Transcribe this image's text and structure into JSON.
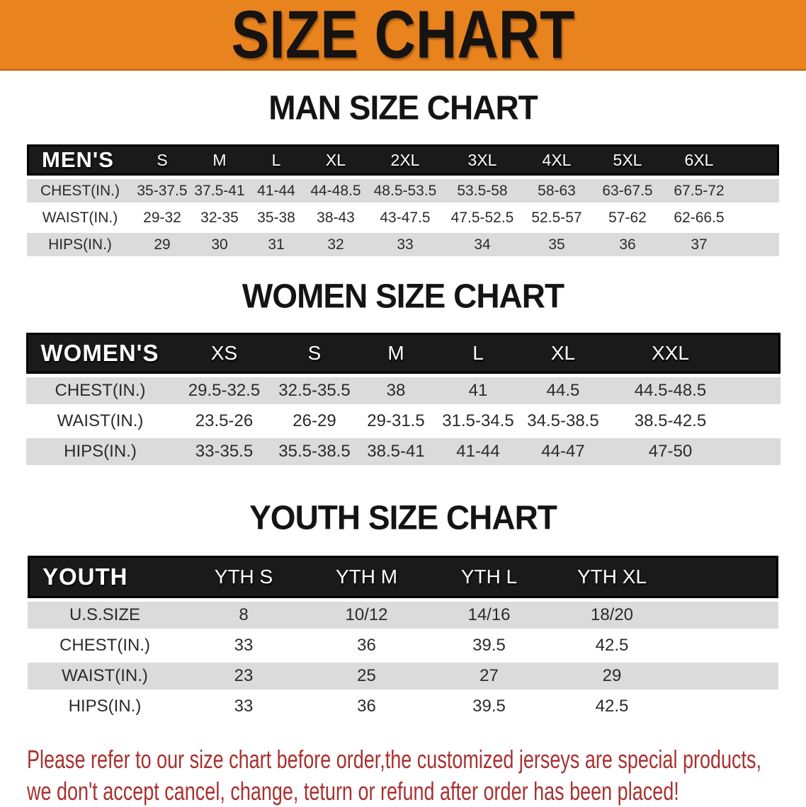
{
  "banner": {
    "title": "SIZE CHART",
    "bg_color": "#E8831E"
  },
  "sections": [
    {
      "heading": "MAN SIZE CHART",
      "table": {
        "header_label": "MEN'S",
        "columns": [
          "S",
          "M",
          "L",
          "XL",
          "2XL",
          "3XL",
          "4XL",
          "5XL",
          "6XL"
        ],
        "rows": [
          {
            "label": "CHEST(IN.)",
            "values": [
              "35-37.5",
              "37.5-41",
              "41-44",
              "44-48.5",
              "48.5-53.5",
              "53.5-58",
              "58-63",
              "63-67.5",
              "67.5-72"
            ]
          },
          {
            "label": "WAIST(IN.)",
            "values": [
              "29-32",
              "32-35",
              "35-38",
              "38-43",
              "43-47.5",
              "47.5-52.5",
              "52.5-57",
              "57-62",
              "62-66.5"
            ]
          },
          {
            "label": "HIPS(IN.)",
            "values": [
              "29",
              "30",
              "31",
              "32",
              "33",
              "34",
              "35",
              "36",
              "37"
            ]
          }
        ]
      }
    },
    {
      "heading": "WOMEN SIZE CHART",
      "table": {
        "header_label": "WOMEN'S",
        "columns": [
          "XS",
          "S",
          "M",
          "L",
          "XL",
          "XXL"
        ],
        "rows": [
          {
            "label": "CHEST(IN.)",
            "values": [
              "29.5-32.5",
              "32.5-35.5",
              "38",
              "41",
              "44.5",
              "44.5-48.5"
            ]
          },
          {
            "label": "WAIST(IN.)",
            "values": [
              "23.5-26",
              "26-29",
              "29-31.5",
              "31.5-34.5",
              "34.5-38.5",
              "38.5-42.5"
            ]
          },
          {
            "label": "HIPS(IN.)",
            "values": [
              "33-35.5",
              "35.5-38.5",
              "38.5-41",
              "41-44",
              "44-47",
              "47-50"
            ]
          }
        ]
      }
    },
    {
      "heading": "YOUTH SIZE CHART",
      "table": {
        "header_label": "YOUTH",
        "columns": [
          "YTH S",
          "YTH M",
          "YTH L",
          "YTH XL"
        ],
        "rows": [
          {
            "label": "U.S.SIZE",
            "values": [
              "8",
              "10/12",
              "14/16",
              "18/20"
            ]
          },
          {
            "label": "CHEST(IN.)",
            "values": [
              "33",
              "36",
              "39.5",
              "42.5"
            ]
          },
          {
            "label": "WAIST(IN.)",
            "values": [
              "23",
              "25",
              "27",
              "29"
            ]
          },
          {
            "label": "HIPS(IN.)",
            "values": [
              "33",
              "36",
              "39.5",
              "42.5"
            ]
          }
        ]
      }
    }
  ],
  "disclaimer": {
    "line1": "Please refer to our size chart before order,the customized jerseys are special products,",
    "line2": "we don't accept cancel, change, teturn or refund after order has been placed!",
    "text_color": "#A93130"
  }
}
